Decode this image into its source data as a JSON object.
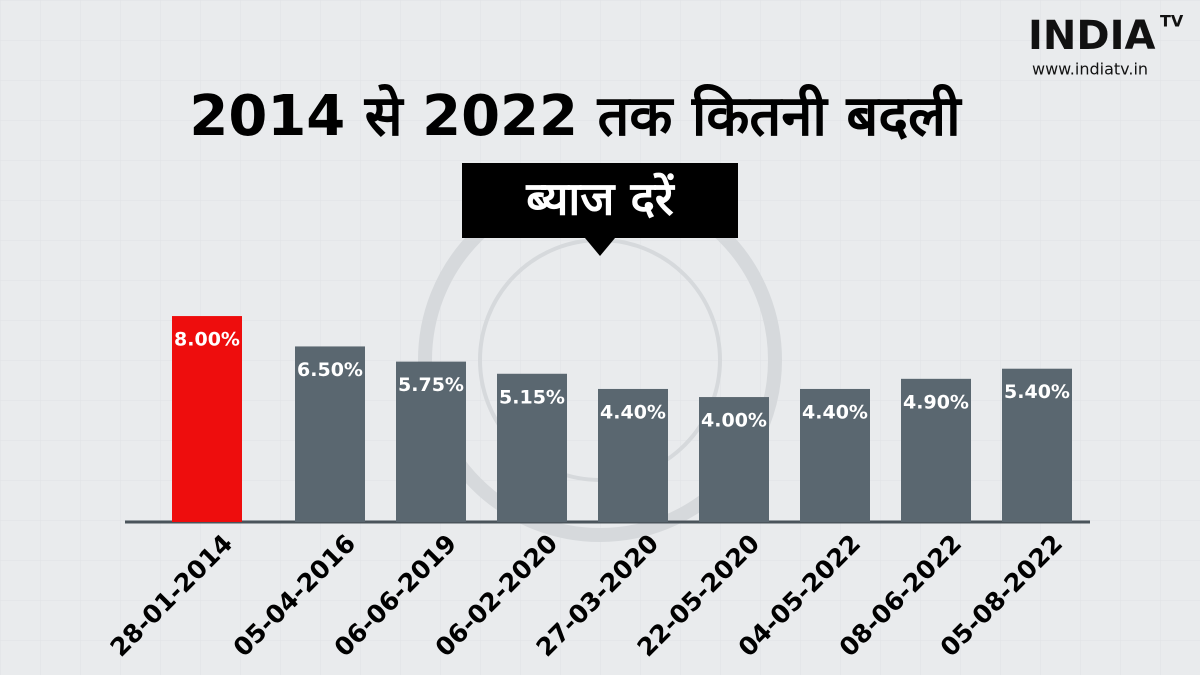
{
  "logo": {
    "brand": "INDIA",
    "suffix": "TV",
    "url": "www.indiatv.in"
  },
  "chart_data": {
    "type": "bar",
    "title": "2014 से 2022 तक कितनी बदली",
    "subtitle": "ब्याज दरें",
    "categories": [
      "28-01-2014",
      "05-04-2016",
      "06-06-2019",
      "06-02-2020",
      "27-03-2020",
      "22-05-2020",
      "04-05-2022",
      "08-06-2022",
      "05-08-2022"
    ],
    "values": [
      8.0,
      6.5,
      5.75,
      5.15,
      4.4,
      4.0,
      4.4,
      4.9,
      5.4
    ],
    "value_labels": [
      "8.00%",
      "6.50%",
      "5.75%",
      "5.15%",
      "4.40%",
      "4.00%",
      "4.40%",
      "4.90%",
      "5.40%"
    ],
    "colors": [
      "#ee0d0d",
      "#5a6770",
      "#5a6770",
      "#5a6770",
      "#5a6770",
      "#5a6770",
      "#5a6770",
      "#5a6770",
      "#5a6770"
    ]
  }
}
